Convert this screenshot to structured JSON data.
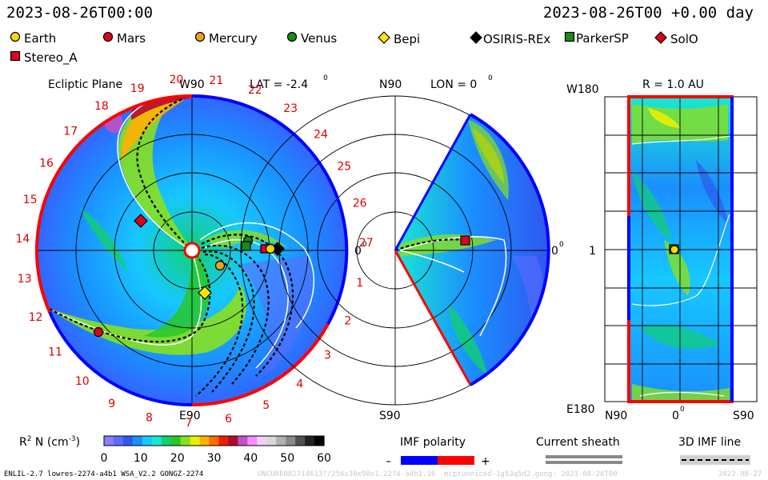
{
  "header": {
    "left_time": "2023-08-26T00:00",
    "right_time": "2023-08-26T00 +0.00 day"
  },
  "legend": [
    {
      "name": "Earth",
      "shape": "circle",
      "color": "#ffd700"
    },
    {
      "name": "Mars",
      "shape": "circle",
      "color": "#e0001a"
    },
    {
      "name": "Mercury",
      "shape": "circle",
      "color": "#f0a020"
    },
    {
      "name": "Venus",
      "shape": "circle",
      "color": "#1a8a1a"
    },
    {
      "name": "Bepi",
      "shape": "diamond",
      "color": "#ffe600"
    },
    {
      "name": "OSIRIS-REx",
      "shape": "diamond",
      "color": "#000000"
    },
    {
      "name": "ParkerSP",
      "shape": "square",
      "color": "#1a8a1a"
    },
    {
      "name": "SolO",
      "shape": "diamond",
      "color": "#e0001a"
    },
    {
      "name": "Stereo_A",
      "shape": "square",
      "color": "#e0001a"
    }
  ],
  "panels": {
    "ecliptic": {
      "title": "Ecliptic Plane",
      "w90": "W90",
      "e90": "E90",
      "lat": "LAT = -2.4",
      "deg": "0",
      "zero": "0",
      "hours": [
        "20",
        "21",
        "22",
        "23",
        "24",
        "25",
        "26",
        "27",
        "1",
        "2",
        "3",
        "4",
        "5",
        "6",
        "7",
        "8",
        "9",
        "10",
        "11",
        "12",
        "13",
        "14",
        "15",
        "16",
        "17",
        "18",
        "19"
      ]
    },
    "meridional": {
      "n90": "N90",
      "s90": "S90",
      "lon": "LON = 0",
      "deg": "0",
      "zero": "0"
    },
    "sphere": {
      "w180": "W180",
      "e180": "E180",
      "r": "R = 1.0 AU",
      "one": "1",
      "n90": "N90",
      "zero": "0",
      "deg": "0",
      "s90": "S90"
    }
  },
  "colorbar": {
    "label_prefix": "R",
    "label_sup": "2",
    "label_mid": " N (cm",
    "label_sup2": "-3",
    "label_end": ")",
    "ticks": [
      "0",
      "10",
      "20",
      "30",
      "40",
      "50",
      "60"
    ],
    "colors": [
      "#8a7dff",
      "#5a6cff",
      "#2f58f0",
      "#1a8fff",
      "#17c8ff",
      "#19e8d0",
      "#10d070",
      "#28c828",
      "#88e020",
      "#e8f000",
      "#ffb000",
      "#ff6a00",
      "#e82000",
      "#b00a30",
      "#c050c8",
      "#ff88ff",
      "#f0d0f0",
      "#d8d8d8",
      "#b0b0b0",
      "#888888",
      "#505050",
      "#202020",
      "#000000"
    ]
  },
  "imf": {
    "title": "IMF polarity",
    "minus": "–",
    "plus": "+",
    "neg_color": "#0000ff",
    "pos_color": "#ff0000"
  },
  "sheath": {
    "title": "Current sheath"
  },
  "line3d": {
    "title": "3D IMF line"
  },
  "footer": {
    "left": "ENLIL-2.7 lowres-2274-a4b1 WSA_V2.2 GONGZ-2274",
    "middle": "UNCURE082714613?/256x30x90x1.2274-a4b1.16 -mcptunniced-1g53q5d2.gong: 2023-08-26T00",
    "right": "2023-08-27"
  }
}
